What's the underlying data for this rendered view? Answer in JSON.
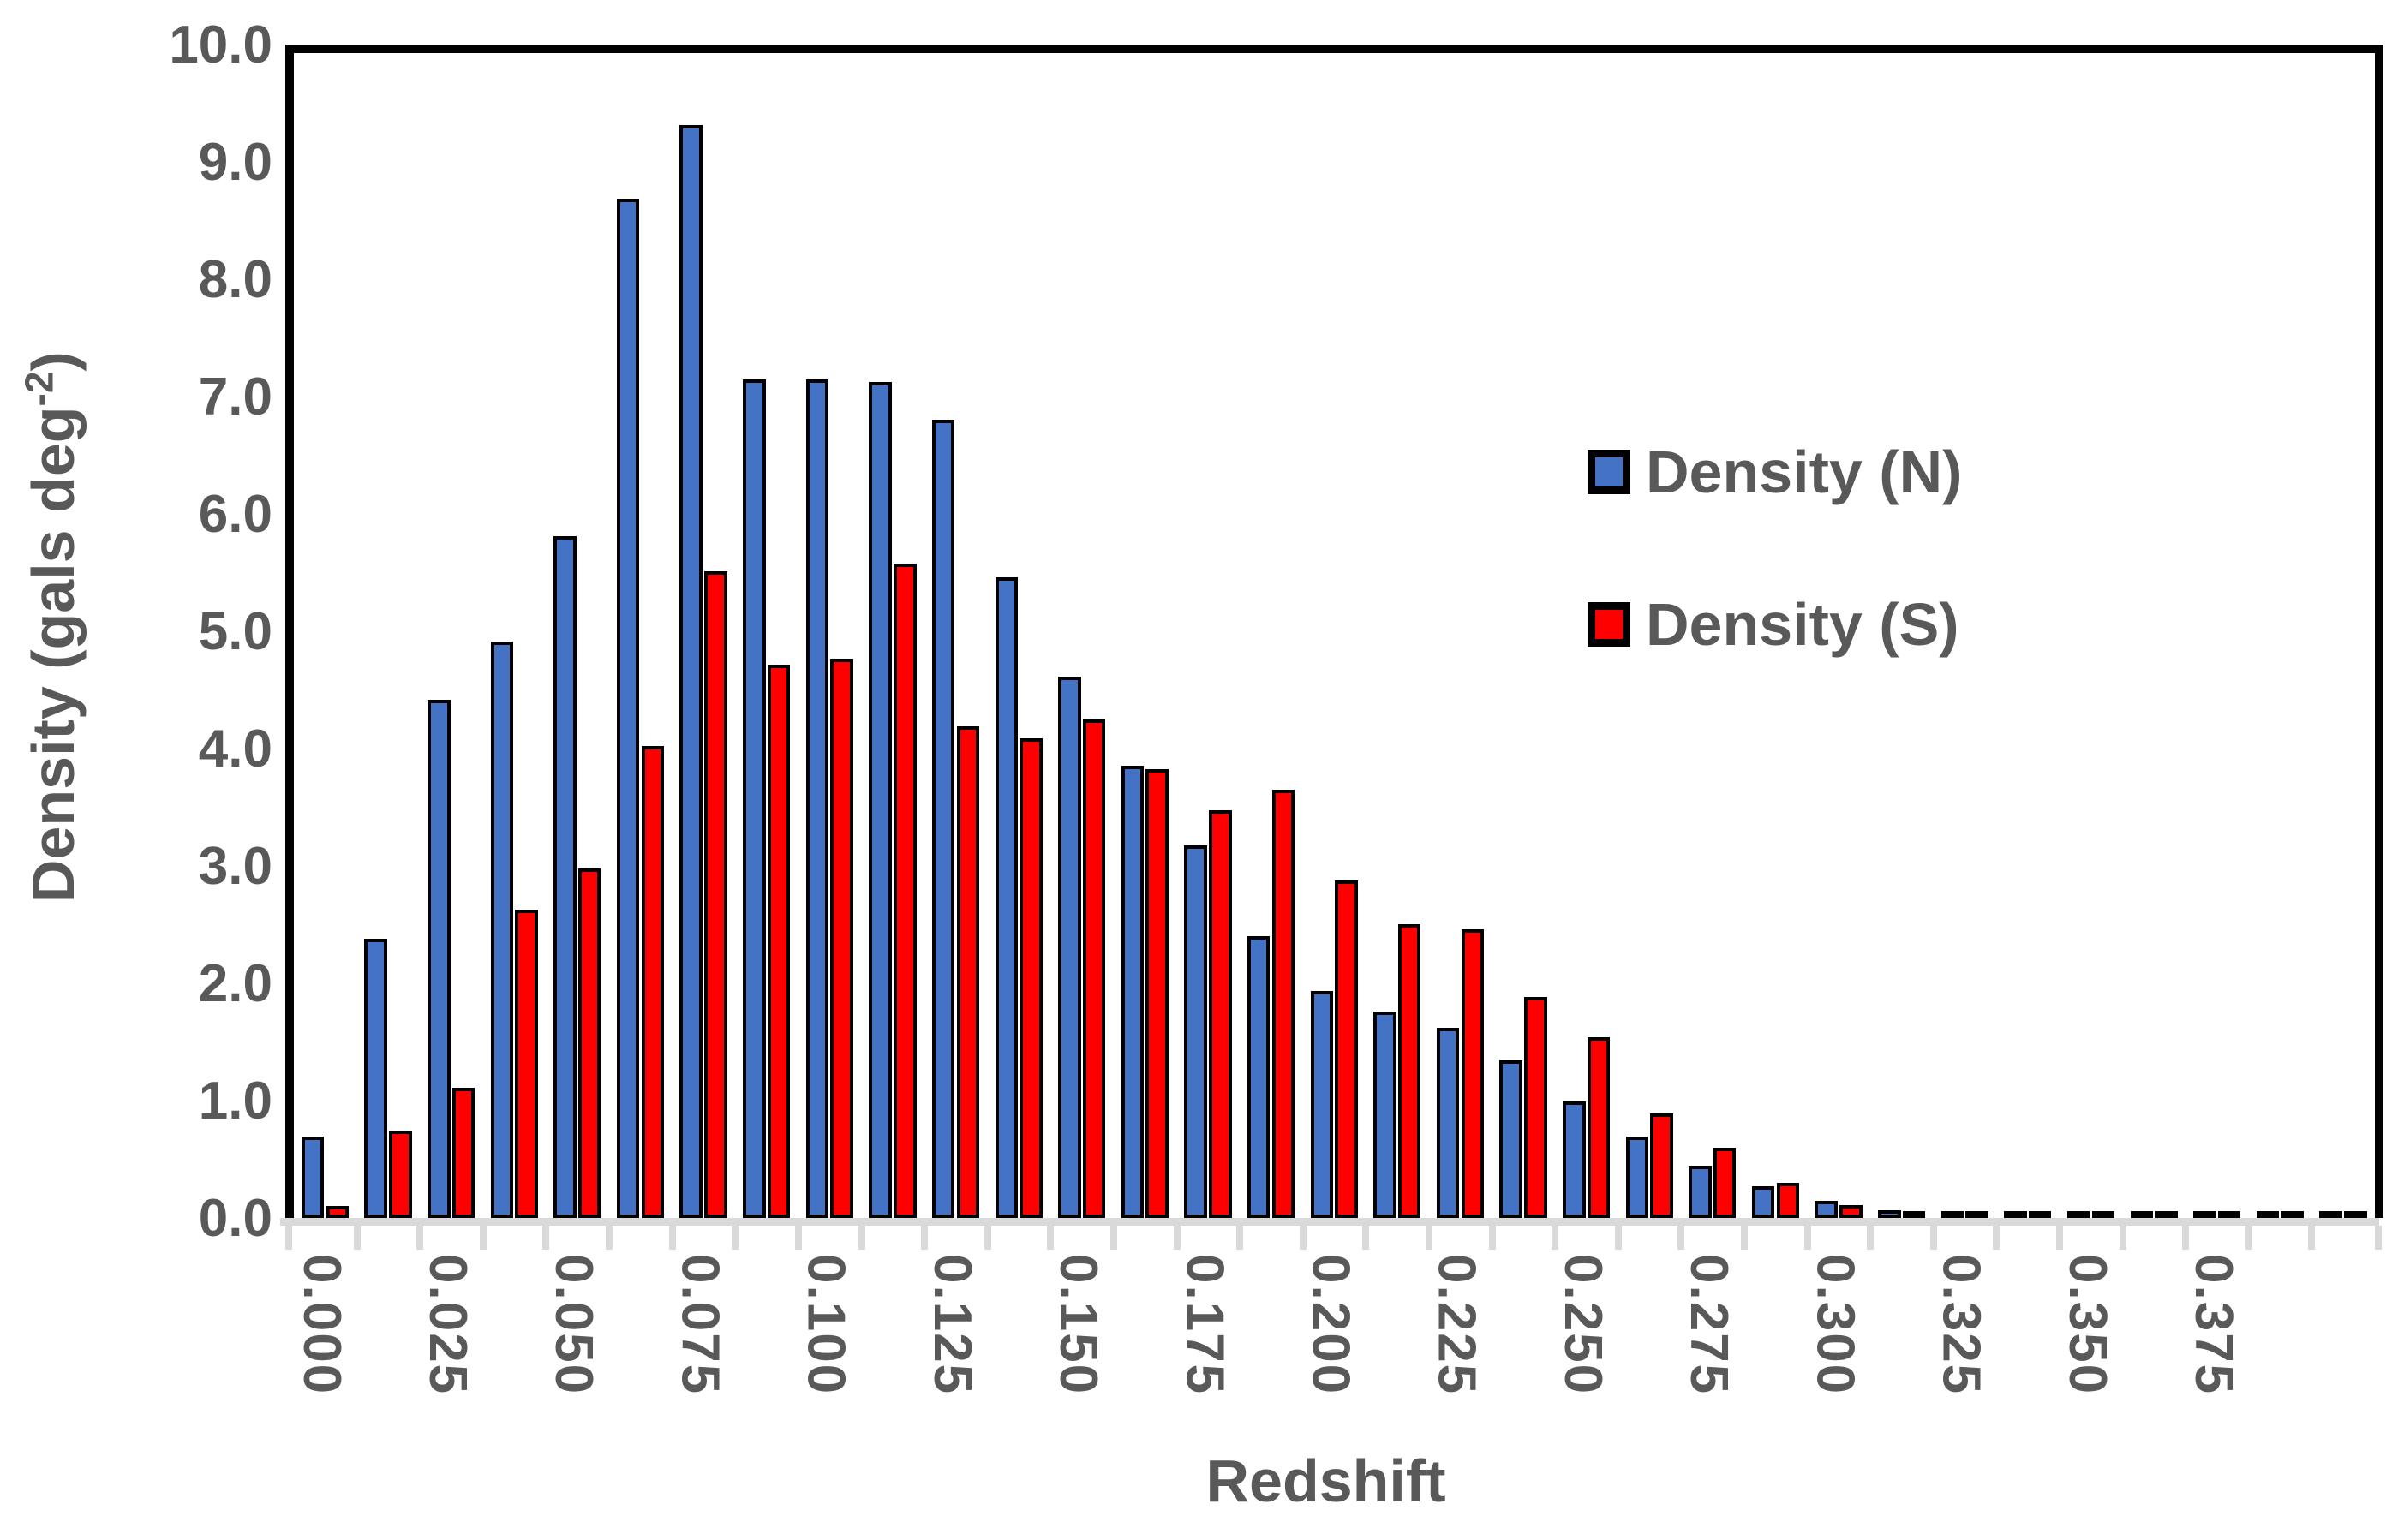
{
  "chart_data": {
    "type": "bar",
    "title": "",
    "xlabel": "Redshift",
    "ylabel_base": "Density (gals deg",
    "ylabel_sup": "-2",
    "ylabel_close": ")",
    "ylim": [
      0,
      10
    ],
    "grid": false,
    "legend_position": "upper-right-inside",
    "bin_width": 0.0125,
    "x": [
      0.0,
      0.0125,
      0.025,
      0.0375,
      0.05,
      0.0625,
      0.075,
      0.0875,
      0.1,
      0.1125,
      0.125,
      0.1375,
      0.15,
      0.1625,
      0.175,
      0.1875,
      0.2,
      0.2125,
      0.225,
      0.2375,
      0.25,
      0.2625,
      0.275,
      0.2875,
      0.3,
      0.3125,
      0.325,
      0.3375,
      0.35,
      0.3625,
      0.375,
      0.3875,
      0.4
    ],
    "series": [
      {
        "name": "Density (N)",
        "color": "#4472C4",
        "values": [
          0.7,
          2.4,
          4.45,
          4.95,
          5.85,
          8.75,
          9.38,
          7.2,
          7.2,
          7.18,
          6.85,
          5.5,
          4.65,
          3.88,
          3.2,
          2.42,
          1.95,
          1.77,
          1.63,
          1.35,
          1.0,
          0.7,
          0.45,
          0.27,
          0.15,
          0.07,
          0.04,
          0.03,
          0.02,
          0.015,
          0.012,
          0.01,
          0.008
        ]
      },
      {
        "name": "Density (S)",
        "color": "#FF0000",
        "values": [
          0.1,
          0.75,
          1.12,
          2.65,
          3.0,
          4.05,
          5.55,
          4.75,
          4.8,
          5.62,
          4.22,
          4.12,
          4.28,
          3.85,
          3.5,
          3.68,
          2.9,
          2.52,
          2.48,
          1.9,
          1.55,
          0.9,
          0.6,
          0.3,
          0.11,
          0.04,
          0.02,
          0.015,
          0.012,
          0.01,
          0.008,
          0.006,
          0.004
        ]
      }
    ],
    "ytick_labels": [
      "0.0",
      "1.0",
      "2.0",
      "3.0",
      "4.0",
      "5.0",
      "6.0",
      "7.0",
      "8.0",
      "9.0",
      "10.0"
    ],
    "xtick_labels": [
      "0.000",
      "0.025",
      "0.050",
      "0.075",
      "0.100",
      "0.125",
      "0.150",
      "0.175",
      "0.200",
      "0.225",
      "0.250",
      "0.275",
      "0.300",
      "0.325",
      "0.350",
      "0.375"
    ]
  },
  "colors": {
    "axis_text": "#595959",
    "tick_mark": "#D9D9D9",
    "bar_outline": "#000000",
    "frame": "#000000",
    "background": "#FFFFFF"
  }
}
